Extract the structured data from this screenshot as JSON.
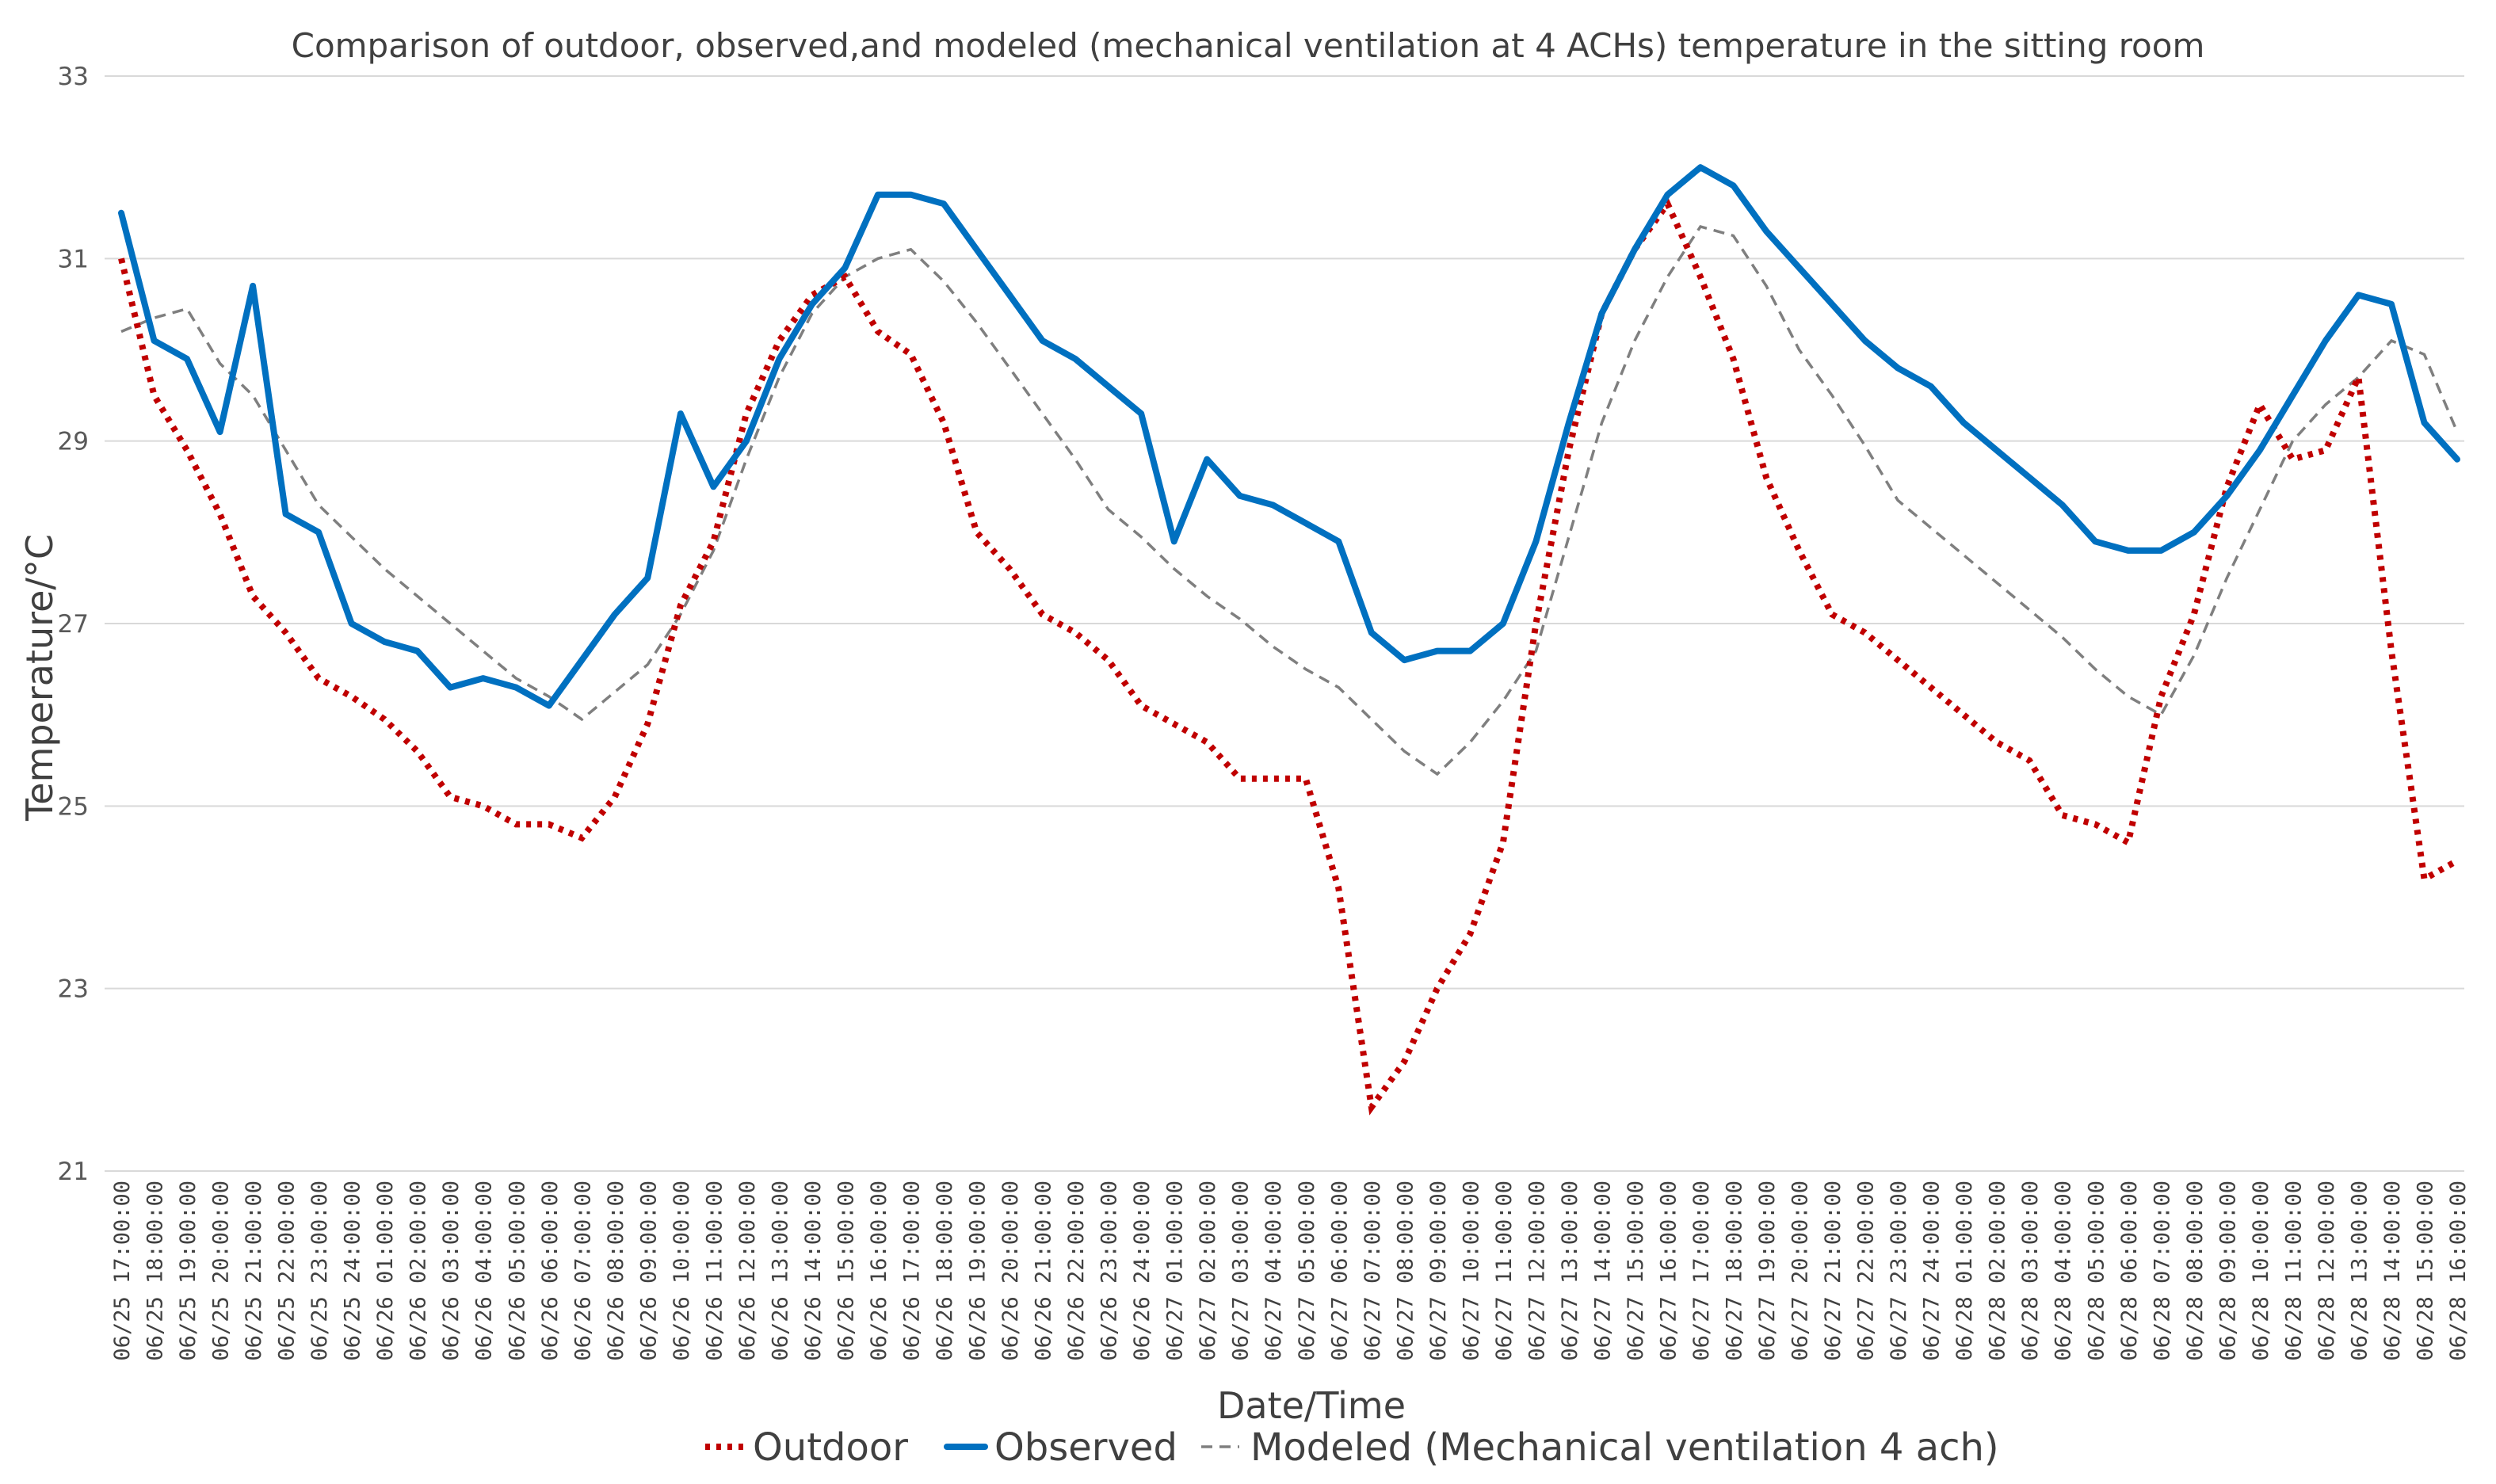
{
  "chart_data": {
    "type": "line",
    "title": "Comparison of outdoor, observed,and modeled (mechanical ventilation at 4 ACHs) temperature in the sitting room",
    "xlabel": "Date/Time",
    "ylabel": "Temperature/°C",
    "ylim": [
      21,
      33
    ],
    "yticks": [
      "21",
      "23",
      "25",
      "27",
      "29",
      "31",
      "33"
    ],
    "legend_position": "bottom",
    "categories": [
      "06/25 17:00:00",
      "06/25 18:00:00",
      "06/25 19:00:00",
      "06/25 20:00:00",
      "06/25 21:00:00",
      "06/25 22:00:00",
      "06/25 23:00:00",
      "06/25 24:00:00",
      "06/26 01:00:00",
      "06/26 02:00:00",
      "06/26 03:00:00",
      "06/26 04:00:00",
      "06/26 05:00:00",
      "06/26 06:00:00",
      "06/26 07:00:00",
      "06/26 08:00:00",
      "06/26 09:00:00",
      "06/26 10:00:00",
      "06/26 11:00:00",
      "06/26 12:00:00",
      "06/26 13:00:00",
      "06/26 14:00:00",
      "06/26 15:00:00",
      "06/26 16:00:00",
      "06/26 17:00:00",
      "06/26 18:00:00",
      "06/26 19:00:00",
      "06/26 20:00:00",
      "06/26 21:00:00",
      "06/26 22:00:00",
      "06/26 23:00:00",
      "06/26 24:00:00",
      "06/27 01:00:00",
      "06/27 02:00:00",
      "06/27 03:00:00",
      "06/27 04:00:00",
      "06/27 05:00:00",
      "06/27 06:00:00",
      "06/27 07:00:00",
      "06/27 08:00:00",
      "06/27 09:00:00",
      "06/27 10:00:00",
      "06/27 11:00:00",
      "06/27 12:00:00",
      "06/27 13:00:00",
      "06/27 14:00:00",
      "06/27 15:00:00",
      "06/27 16:00:00",
      "06/27 17:00:00",
      "06/27 18:00:00",
      "06/27 19:00:00",
      "06/27 20:00:00",
      "06/27 21:00:00",
      "06/27 22:00:00",
      "06/27 23:00:00",
      "06/27 24:00:00",
      "06/28 01:00:00",
      "06/28 02:00:00",
      "06/28 03:00:00",
      "06/28 04:00:00",
      "06/28 05:00:00",
      "06/28 06:00:00",
      "06/28 07:00:00",
      "06/28 08:00:00",
      "06/28 09:00:00",
      "06/28 10:00:00",
      "06/28 11:00:00",
      "06/28 12:00:00",
      "06/28 13:00:00",
      "06/28 14:00:00",
      "06/28 15:00:00",
      "06/28 16:00:00"
    ],
    "series": [
      {
        "name": "Outdoor",
        "color": "#c00000",
        "style": "dotted",
        "values": [
          31.0,
          29.5,
          28.9,
          28.2,
          27.3,
          26.9,
          26.4,
          26.2,
          25.95,
          25.6,
          25.1,
          25.0,
          24.8,
          24.8,
          24.65,
          25.1,
          25.9,
          27.2,
          27.9,
          29.3,
          30.1,
          30.6,
          30.8,
          30.2,
          29.95,
          29.2,
          28.0,
          27.6,
          27.1,
          26.9,
          26.6,
          26.1,
          25.9,
          25.7,
          25.3,
          25.3,
          25.3,
          24.1,
          21.7,
          22.2,
          23.0,
          23.6,
          24.6,
          27.0,
          28.9,
          30.4,
          31.1,
          31.6,
          30.8,
          29.9,
          28.6,
          27.8,
          27.1,
          26.9,
          26.6,
          26.3,
          26.0,
          25.7,
          25.5,
          24.9,
          24.8,
          24.6,
          26.2,
          27.1,
          28.5,
          29.4,
          28.8,
          28.9,
          29.7,
          26.7,
          24.2,
          24.4
        ]
      },
      {
        "name": "Observed",
        "color": "#0070c0",
        "style": "solid",
        "values": [
          31.5,
          30.1,
          29.9,
          29.1,
          30.7,
          28.2,
          28.0,
          27.0,
          26.8,
          26.7,
          26.3,
          26.4,
          26.3,
          26.1,
          26.6,
          27.1,
          27.5,
          29.3,
          28.5,
          29.0,
          29.9,
          30.5,
          30.9,
          31.7,
          31.7,
          31.6,
          31.1,
          30.6,
          30.1,
          29.9,
          29.6,
          29.3,
          27.9,
          28.8,
          28.4,
          28.3,
          28.1,
          27.9,
          26.9,
          26.6,
          26.7,
          26.7,
          27.0,
          27.9,
          29.2,
          30.4,
          31.1,
          31.7,
          32.0,
          31.8,
          31.3,
          30.9,
          30.5,
          30.1,
          29.8,
          29.6,
          29.2,
          28.9,
          28.6,
          28.3,
          27.9,
          27.8,
          27.8,
          28.0,
          28.4,
          28.9,
          29.5,
          30.1,
          30.6,
          30.5,
          29.2,
          28.8
        ]
      },
      {
        "name": "Modeled (Mechanical ventilation 4 ach)",
        "color": "#7f7f7f",
        "style": "dashed",
        "values": [
          30.2,
          30.35,
          30.45,
          29.85,
          29.5,
          28.9,
          28.3,
          27.95,
          27.6,
          27.3,
          27.0,
          26.7,
          26.4,
          26.2,
          25.95,
          26.25,
          26.55,
          27.1,
          27.8,
          28.8,
          29.7,
          30.4,
          30.8,
          31.0,
          31.1,
          30.75,
          30.3,
          29.8,
          29.3,
          28.8,
          28.25,
          27.95,
          27.6,
          27.3,
          27.05,
          26.75,
          26.5,
          26.3,
          25.95,
          25.6,
          25.35,
          25.7,
          26.15,
          26.7,
          27.95,
          29.2,
          30.1,
          30.8,
          31.35,
          31.25,
          30.7,
          30.0,
          29.5,
          28.95,
          28.35,
          28.05,
          27.75,
          27.45,
          27.15,
          26.85,
          26.5,
          26.2,
          26.0,
          26.65,
          27.5,
          28.25,
          29.0,
          29.4,
          29.7,
          30.1,
          29.95,
          29.1
        ]
      }
    ]
  }
}
